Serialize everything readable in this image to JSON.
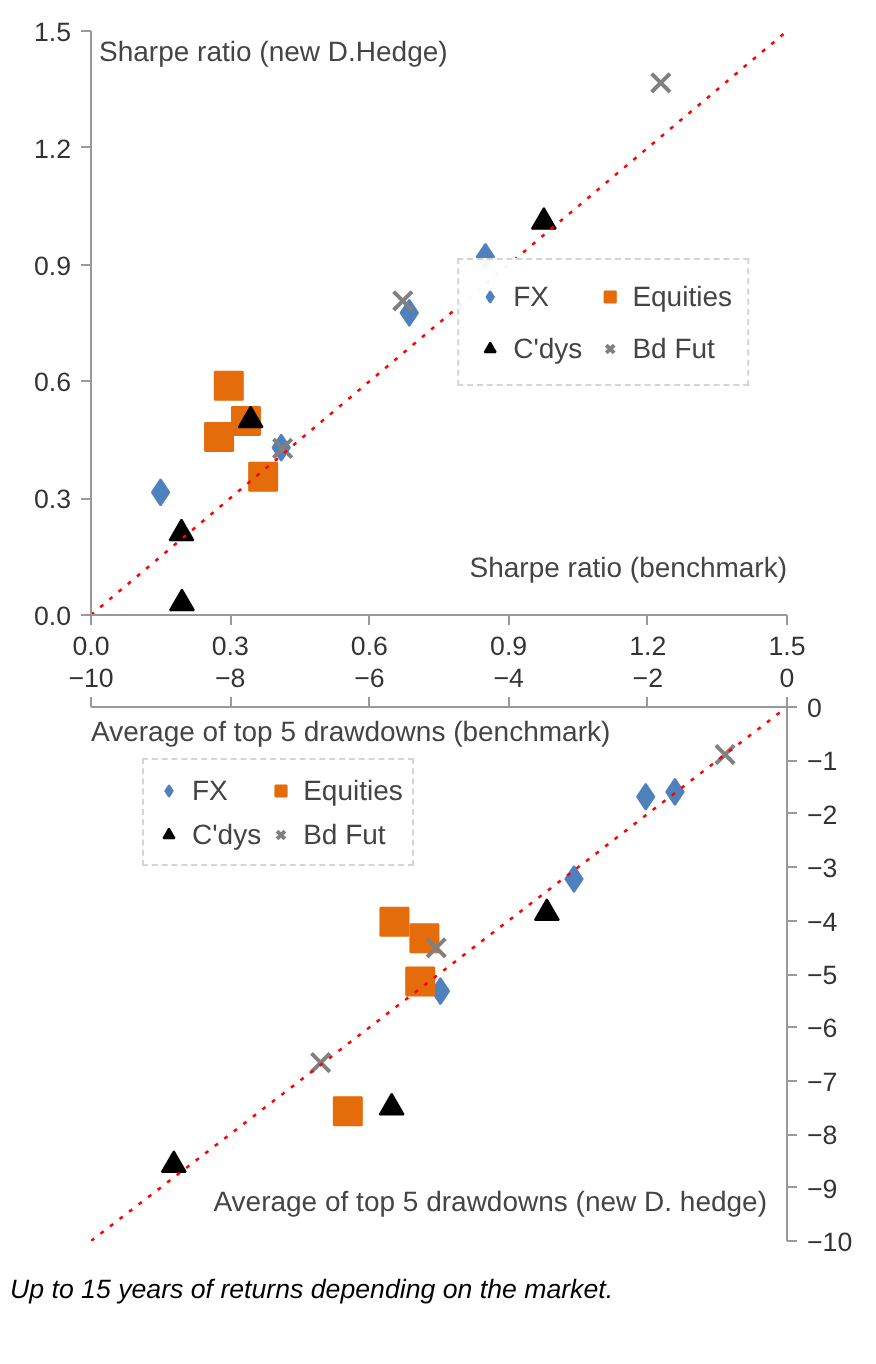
{
  "chart_data": [
    {
      "type": "scatter",
      "ylabel": "Sharpe ratio (new D.Hedge)",
      "xlabel": "Sharpe ratio (benchmark)",
      "xlim": [
        0,
        1.5
      ],
      "ylim": [
        0,
        1.5
      ],
      "xticks": [
        {
          "value": 0,
          "label": "0.0"
        },
        0.3,
        0.6,
        0.9,
        1.2,
        1.5
      ],
      "yticks": [
        {
          "value": 0,
          "label": "0.0"
        },
        0.3,
        0.6,
        0.9,
        1.2,
        1.5
      ],
      "grid": false,
      "legend": "right",
      "series": [
        {
          "name": "FX",
          "color": "#4f81bd",
          "marker": "diamond",
          "x": [
            0.15,
            0.41,
            0.686,
            0.85
          ],
          "values": [
            0.315,
            0.43,
            0.776,
            0.92
          ]
        },
        {
          "name": "Equities",
          "color": "#e46c0a",
          "marker": "square",
          "x": [
            0.297,
            0.334,
            0.276,
            0.371
          ],
          "values": [
            0.589,
            0.498,
            0.457,
            0.355
          ]
        },
        {
          "name": "C'dys",
          "color": "#000000",
          "marker": "triangle",
          "x": [
            0.195,
            0.196,
            0.344,
            0.976
          ],
          "values": [
            0.21,
            0.03,
            0.5,
            1.01
          ]
        },
        {
          "name": "Bd Fut",
          "color": "#808080",
          "marker": "cross",
          "x": [
            1.228,
            0.672,
            0.413
          ],
          "values": [
            1.367,
            0.807,
            0.428
          ]
        },
        {
          "type": "line",
          "color": "#ff0000",
          "line_style": "dotted",
          "x": [
            0,
            1.5
          ],
          "values": [
            0,
            1.5
          ]
        }
      ]
    },
    {
      "type": "scatter",
      "xlabel": "Average of top 5 drawdowns (benchmark)",
      "ylabel": "Average of top 5 drawdowns (new D. hedge)",
      "xlim": [
        -10,
        0
      ],
      "ylim": [
        -10,
        0
      ],
      "xticks": [
        -10,
        -8,
        -6,
        -4,
        -2,
        0
      ],
      "yticks": [
        0,
        -1,
        -2,
        -3,
        -4,
        -5,
        -6,
        -7,
        -8,
        -9,
        -10
      ],
      "grid": false,
      "legend": "top left",
      "series": [
        {
          "name": "FX",
          "color": "#4f81bd",
          "marker": "diamond",
          "x": [
            -2.03,
            -1.61,
            -3.06,
            -4.98
          ],
          "values": [
            -1.68,
            -1.59,
            -3.22,
            -5.32
          ]
        },
        {
          "name": "Equities",
          "color": "#e46c0a",
          "marker": "square",
          "x": [
            -5.64,
            -5.21,
            -5.27,
            -6.31
          ],
          "values": [
            -4.02,
            -4.33,
            -5.14,
            -7.57
          ]
        },
        {
          "name": "C'dys",
          "color": "#000000",
          "marker": "triangle",
          "x": [
            -3.45,
            -5.68,
            -8.81
          ],
          "values": [
            -3.86,
            -7.5,
            -8.58
          ]
        },
        {
          "name": "Bd Fut",
          "color": "#808080",
          "marker": "cross",
          "x": [
            -0.89,
            -5.04,
            -6.7
          ],
          "values": [
            -0.89,
            -4.51,
            -6.66
          ]
        },
        {
          "type": "line",
          "color": "#ff0000",
          "line_style": "dotted",
          "x": [
            -10,
            0
          ],
          "values": [
            -10,
            0
          ]
        }
      ],
      "annotations": [
        "Up to 15 years of returns depending on the market."
      ]
    }
  ]
}
